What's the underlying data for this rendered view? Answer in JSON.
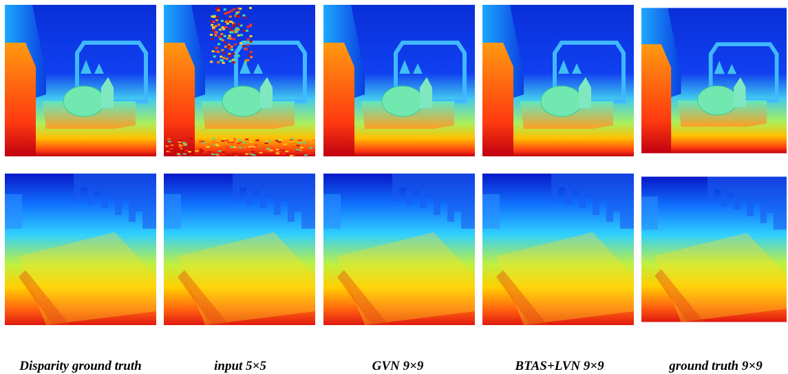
{
  "captions": [
    "Disparity ground truth",
    "input 5×5",
    "GVN 9×9",
    "BTAS+LVN 9×9",
    "ground truth 9×9"
  ]
}
